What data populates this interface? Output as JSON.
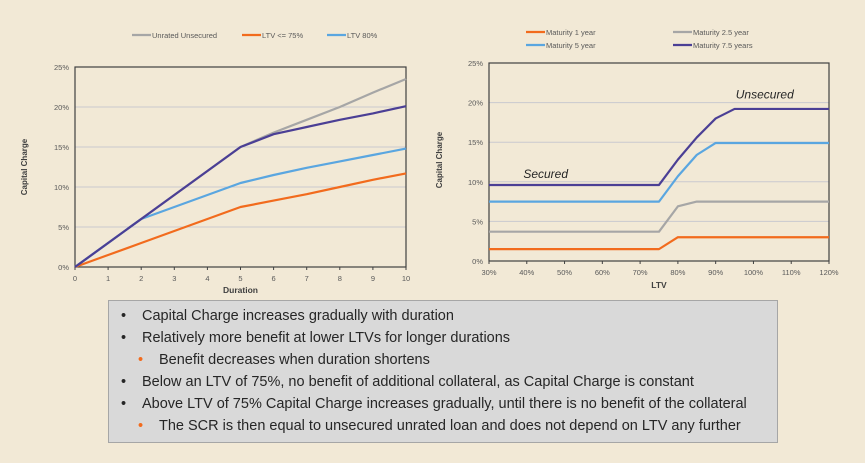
{
  "chart_data": [
    {
      "type": "line",
      "title": "",
      "xlabel": "Duration",
      "ylabel": "Capital Charge",
      "xlim": [
        0,
        10
      ],
      "ylim": [
        0,
        25
      ],
      "xticks": [
        "0",
        "1",
        "2",
        "3",
        "4",
        "5",
        "6",
        "7",
        "8",
        "9",
        "10"
      ],
      "yticks": [
        "0%",
        "5%",
        "10%",
        "15%",
        "20%",
        "25%"
      ],
      "grid": "horizontal",
      "legend": "top",
      "x": [
        0,
        1,
        2,
        3,
        4,
        5,
        6,
        7,
        8,
        9,
        10
      ],
      "series": [
        {
          "name": "Unrated Unsecured",
          "color": "#a6a6a6",
          "values": [
            0,
            3,
            6,
            9,
            12,
            15,
            16.8,
            18.4,
            20,
            21.8,
            23.5
          ]
        },
        {
          "name": "LTV <= 75%",
          "color": "#f26b1d",
          "values": [
            0,
            1.5,
            3,
            4.5,
            6,
            7.5,
            8.3,
            9.1,
            10,
            10.9,
            11.7
          ]
        },
        {
          "name": "LTV 80%",
          "color": "#5aa6e0",
          "values": [
            0,
            3,
            6,
            7.5,
            9,
            10.5,
            11.5,
            12.4,
            13.2,
            14,
            14.8
          ]
        },
        {
          "name": "",
          "color": "#4b3f95",
          "values": [
            0,
            3,
            6,
            9,
            12,
            15,
            16.6,
            17.5,
            18.4,
            19.2,
            20.1
          ]
        }
      ],
      "annotations": []
    },
    {
      "type": "line",
      "title": "",
      "xlabel": "LTV",
      "ylabel": "Capital Charge",
      "xlim": [
        30,
        120
      ],
      "ylim": [
        0,
        25
      ],
      "xticks": [
        "30%",
        "40%",
        "50%",
        "60%",
        "70%",
        "80%",
        "90%",
        "100%",
        "110%",
        "120%"
      ],
      "yticks": [
        "0%",
        "5%",
        "10%",
        "15%",
        "20%",
        "25%"
      ],
      "grid": "horizontal",
      "legend": "top",
      "x": [
        30,
        75,
        80,
        85,
        90,
        95,
        120
      ],
      "series": [
        {
          "name": "Maturity 1 year",
          "color": "#f26b1d",
          "values": [
            1.5,
            1.5,
            3,
            3,
            3,
            3,
            3
          ]
        },
        {
          "name": "Maturity 2.5 year",
          "color": "#a6a6a6",
          "values": [
            3.7,
            3.7,
            6.9,
            7.5,
            7.5,
            7.5,
            7.5
          ]
        },
        {
          "name": "Maturity 5 year",
          "color": "#5aa6e0",
          "values": [
            7.5,
            7.5,
            10.7,
            13.4,
            14.9,
            14.9,
            14.9
          ]
        },
        {
          "name": "Maturity 7.5 years",
          "color": "#4b3f95",
          "values": [
            9.6,
            9.6,
            12.8,
            15.6,
            18,
            19.2,
            19.2
          ]
        }
      ],
      "annotations": [
        {
          "text": "Secured",
          "x": 45,
          "y": 10.5
        },
        {
          "text": "Unsecured",
          "x": 103,
          "y": 20.5
        }
      ]
    }
  ],
  "notes": [
    {
      "level": 0,
      "text": "Capital Charge increases gradually with duration"
    },
    {
      "level": 0,
      "text": "Relatively more benefit at lower LTVs for longer durations"
    },
    {
      "level": 1,
      "text": "Benefit decreases when duration shortens"
    },
    {
      "level": 0,
      "text": "Below an LTV of 75%, no benefit of additional collateral, as Capital Charge is constant"
    },
    {
      "level": 0,
      "text": "Above LTV of 75% Capital Charge increases gradually, until there is no benefit of the collateral"
    },
    {
      "level": 1,
      "text": "The SCR is then equal to unsecured unrated loan and does not depend on LTV any further"
    }
  ],
  "bullet": "•"
}
